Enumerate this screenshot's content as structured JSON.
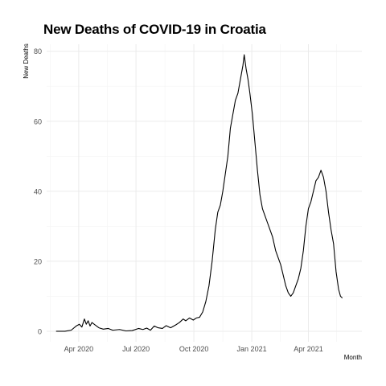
{
  "chart_data": {
    "type": "line",
    "title": "New Deaths of COVID-19 in Croatia",
    "xlabel": "Month",
    "ylabel": "New Deaths",
    "x_ticks": [
      {
        "date": "2020-04-01",
        "label": "Apr 2020"
      },
      {
        "date": "2020-07-01",
        "label": "Jul 2020"
      },
      {
        "date": "2020-10-01",
        "label": "Oct 2020"
      },
      {
        "date": "2021-01-01",
        "label": "Jan 2021"
      },
      {
        "date": "2021-04-01",
        "label": "Apr 2021"
      }
    ],
    "y_ticks": [
      0,
      20,
      40,
      60,
      80
    ],
    "xlim": [
      "2020-02-10",
      "2021-06-25"
    ],
    "ylim": [
      -3,
      82
    ],
    "grid": true,
    "line_color": "#000000",
    "grid_color": "#ebebeb",
    "series": [
      {
        "name": "",
        "points": [
          [
            "2020-02-25",
            0
          ],
          [
            "2020-03-10",
            0
          ],
          [
            "2020-03-20",
            0.3
          ],
          [
            "2020-03-28",
            1.5
          ],
          [
            "2020-04-02",
            2
          ],
          [
            "2020-04-06",
            1.2
          ],
          [
            "2020-04-10",
            3.5
          ],
          [
            "2020-04-13",
            2
          ],
          [
            "2020-04-16",
            3
          ],
          [
            "2020-04-19",
            1.5
          ],
          [
            "2020-04-22",
            2.5
          ],
          [
            "2020-04-27",
            1.8
          ],
          [
            "2020-05-03",
            1
          ],
          [
            "2020-05-10",
            0.6
          ],
          [
            "2020-05-18",
            0.8
          ],
          [
            "2020-05-25",
            0.3
          ],
          [
            "2020-06-05",
            0.5
          ],
          [
            "2020-06-15",
            0.1
          ],
          [
            "2020-06-25",
            0.2
          ],
          [
            "2020-07-05",
            0.8
          ],
          [
            "2020-07-12",
            0.5
          ],
          [
            "2020-07-18",
            0.9
          ],
          [
            "2020-07-24",
            0.3
          ],
          [
            "2020-07-30",
            1.5
          ],
          [
            "2020-08-05",
            1
          ],
          [
            "2020-08-12",
            0.8
          ],
          [
            "2020-08-18",
            1.6
          ],
          [
            "2020-08-25",
            1
          ],
          [
            "2020-09-02",
            1.8
          ],
          [
            "2020-09-08",
            2.5
          ],
          [
            "2020-09-14",
            3.5
          ],
          [
            "2020-09-18",
            3
          ],
          [
            "2020-09-24",
            3.8
          ],
          [
            "2020-09-30",
            3.2
          ],
          [
            "2020-10-05",
            3.8
          ],
          [
            "2020-10-10",
            4
          ],
          [
            "2020-10-15",
            5.5
          ],
          [
            "2020-10-20",
            8.5
          ],
          [
            "2020-10-25",
            13
          ],
          [
            "2020-10-30",
            20
          ],
          [
            "2020-11-04",
            29
          ],
          [
            "2020-11-08",
            34
          ],
          [
            "2020-11-12",
            36
          ],
          [
            "2020-11-16",
            40
          ],
          [
            "2020-11-20",
            45
          ],
          [
            "2020-11-24",
            50
          ],
          [
            "2020-11-28",
            58
          ],
          [
            "2020-12-02",
            62
          ],
          [
            "2020-12-06",
            66
          ],
          [
            "2020-12-10",
            68
          ],
          [
            "2020-12-14",
            72
          ],
          [
            "2020-12-18",
            76
          ],
          [
            "2020-12-20",
            79
          ],
          [
            "2020-12-23",
            75
          ],
          [
            "2020-12-26",
            72
          ],
          [
            "2020-12-29",
            68
          ],
          [
            "2021-01-02",
            62
          ],
          [
            "2021-01-06",
            54
          ],
          [
            "2021-01-10",
            46
          ],
          [
            "2021-01-14",
            39
          ],
          [
            "2021-01-18",
            35
          ],
          [
            "2021-01-22",
            33
          ],
          [
            "2021-01-26",
            31
          ],
          [
            "2021-01-30",
            29
          ],
          [
            "2021-02-03",
            27
          ],
          [
            "2021-02-08",
            23
          ],
          [
            "2021-02-12",
            21
          ],
          [
            "2021-02-16",
            19
          ],
          [
            "2021-02-20",
            16
          ],
          [
            "2021-02-24",
            13
          ],
          [
            "2021-02-28",
            11
          ],
          [
            "2021-03-04",
            10
          ],
          [
            "2021-03-08",
            11
          ],
          [
            "2021-03-12",
            13
          ],
          [
            "2021-03-16",
            15
          ],
          [
            "2021-03-20",
            18
          ],
          [
            "2021-03-24",
            23
          ],
          [
            "2021-03-28",
            30
          ],
          [
            "2021-04-01",
            35
          ],
          [
            "2021-04-05",
            37
          ],
          [
            "2021-04-09",
            40
          ],
          [
            "2021-04-13",
            43
          ],
          [
            "2021-04-17",
            44
          ],
          [
            "2021-04-21",
            46
          ],
          [
            "2021-04-25",
            44
          ],
          [
            "2021-04-29",
            40
          ],
          [
            "2021-05-03",
            34
          ],
          [
            "2021-05-07",
            29
          ],
          [
            "2021-05-11",
            25
          ],
          [
            "2021-05-15",
            17
          ],
          [
            "2021-05-19",
            12
          ],
          [
            "2021-05-22",
            10
          ],
          [
            "2021-05-25",
            9.5
          ]
        ]
      }
    ]
  }
}
